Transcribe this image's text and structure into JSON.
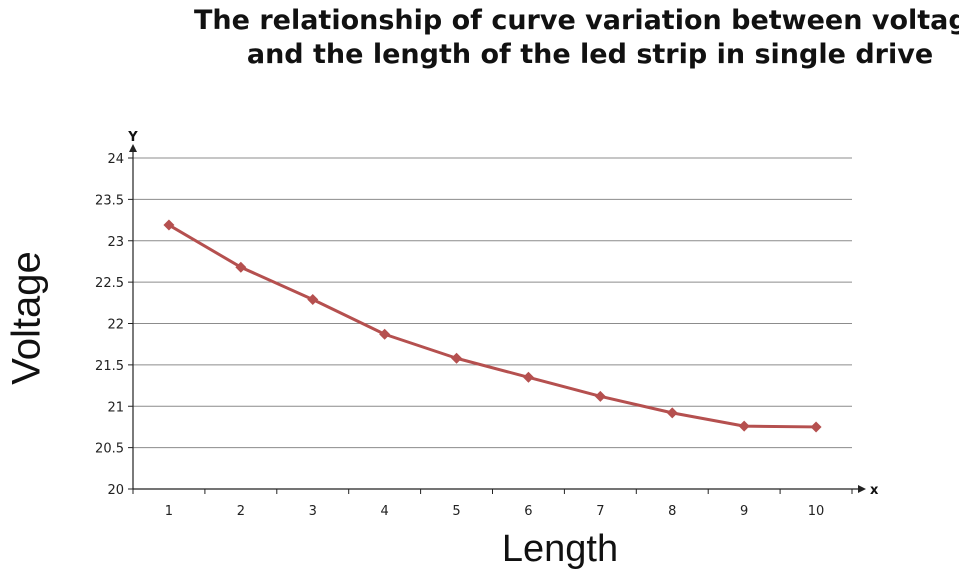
{
  "chart_data": {
    "type": "line",
    "title": [
      "The relationship of curve variation between voltage",
      "and the length of the led strip in single drive"
    ],
    "xlabel": "Length",
    "ylabel": "Voltage",
    "x_axis_letter": "x",
    "y_axis_letter": "Y",
    "categories": [
      "1",
      "2",
      "3",
      "4",
      "5",
      "6",
      "7",
      "8",
      "9",
      "10"
    ],
    "series": [
      {
        "values": [
          23.19,
          22.68,
          22.29,
          21.87,
          21.58,
          21.35,
          21.12,
          20.92,
          20.76,
          20.75
        ]
      }
    ],
    "ylim": [
      20,
      24
    ],
    "yticks": [
      "20",
      "20.5",
      "21",
      "21.5",
      "22",
      "22.5",
      "23",
      "23.5",
      "24"
    ],
    "grid": true,
    "legend": "none",
    "colors": {
      "line": "#b5504f",
      "marker": "#b5504f",
      "grid": "#8c8c8c",
      "axis": "#222222"
    }
  }
}
